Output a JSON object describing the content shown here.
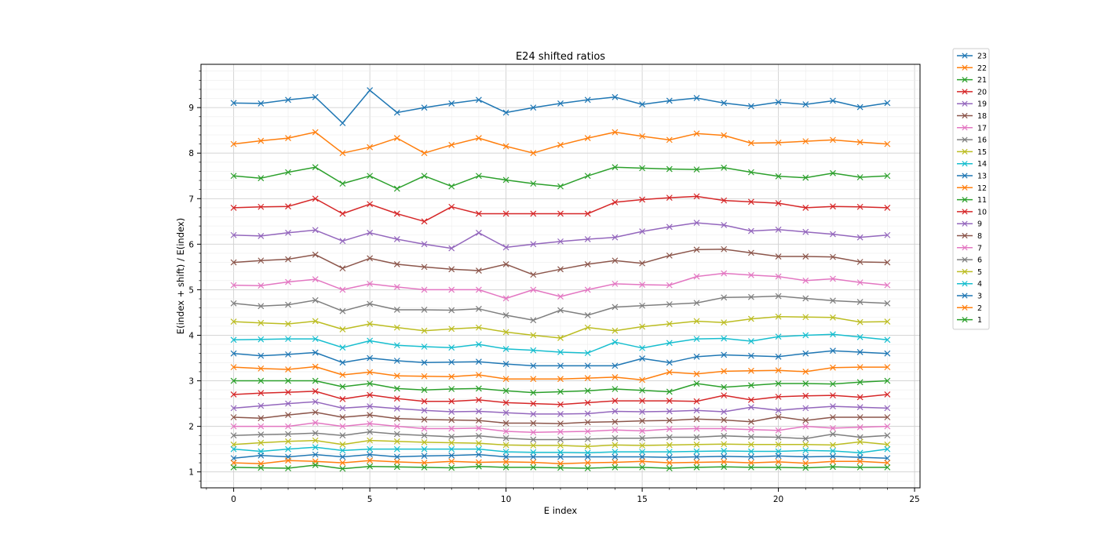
{
  "chart_data": {
    "type": "line",
    "title": "E24 shifted ratios",
    "xlabel": "E index",
    "ylabel": "E(index + shift) / E(index)",
    "xlim": [
      -1.2,
      25.2
    ],
    "ylim": [
      0.65,
      9.95
    ],
    "xticks": [
      0,
      5,
      10,
      15,
      20,
      25
    ],
    "yticks": [
      1,
      2,
      3,
      4,
      5,
      6,
      7,
      8,
      9
    ],
    "grid": "major and minor",
    "marker": "x",
    "legend_position": "outside-right",
    "x": [
      0,
      1,
      2,
      3,
      4,
      5,
      6,
      7,
      8,
      9,
      10,
      11,
      12,
      13,
      14,
      15,
      16,
      17,
      18,
      19,
      20,
      21,
      22,
      23,
      24
    ],
    "series": [
      {
        "name": "23",
        "color": "#1f77b4",
        "values": [
          9.1,
          9.09,
          9.17,
          9.23,
          8.66,
          9.38,
          8.89,
          9.0,
          9.09,
          9.17,
          8.89,
          9.0,
          9.09,
          9.17,
          9.23,
          9.07,
          9.15,
          9.21,
          9.1,
          9.03,
          9.12,
          9.07,
          9.15,
          9.01,
          9.1
        ]
      },
      {
        "name": "22",
        "color": "#ff7f0e",
        "values": [
          8.2,
          8.27,
          8.33,
          8.46,
          8.0,
          8.13,
          8.33,
          8.0,
          8.18,
          8.33,
          8.15,
          8.0,
          8.18,
          8.33,
          8.46,
          8.37,
          8.29,
          8.43,
          8.39,
          8.22,
          8.23,
          8.26,
          8.29,
          8.24,
          8.2
        ]
      },
      {
        "name": "21",
        "color": "#2ca02c",
        "values": [
          7.5,
          7.45,
          7.58,
          7.69,
          7.33,
          7.5,
          7.22,
          7.5,
          7.27,
          7.5,
          7.41,
          7.33,
          7.27,
          7.5,
          7.69,
          7.67,
          7.65,
          7.64,
          7.68,
          7.58,
          7.49,
          7.46,
          7.56,
          7.47,
          7.5
        ]
      },
      {
        "name": "20",
        "color": "#d62728",
        "values": [
          6.8,
          6.82,
          6.83,
          7.0,
          6.67,
          6.88,
          6.67,
          6.5,
          6.82,
          6.67,
          6.67,
          6.67,
          6.67,
          6.67,
          6.92,
          6.98,
          7.02,
          7.05,
          6.96,
          6.93,
          6.9,
          6.8,
          6.83,
          6.82,
          6.8
        ]
      },
      {
        "name": "19",
        "color": "#9467bd",
        "values": [
          6.2,
          6.18,
          6.25,
          6.31,
          6.07,
          6.25,
          6.11,
          6.0,
          5.91,
          6.25,
          5.93,
          6.0,
          6.06,
          6.11,
          6.15,
          6.28,
          6.38,
          6.47,
          6.42,
          6.29,
          6.32,
          6.27,
          6.22,
          6.15,
          6.2
        ]
      },
      {
        "name": "18",
        "color": "#8c564b",
        "values": [
          5.6,
          5.64,
          5.67,
          5.77,
          5.47,
          5.69,
          5.56,
          5.5,
          5.45,
          5.42,
          5.56,
          5.33,
          5.45,
          5.56,
          5.64,
          5.58,
          5.75,
          5.88,
          5.89,
          5.81,
          5.73,
          5.73,
          5.72,
          5.61,
          5.6
        ]
      },
      {
        "name": "17",
        "color": "#e377c2",
        "values": [
          5.1,
          5.09,
          5.17,
          5.23,
          5.0,
          5.13,
          5.06,
          5.0,
          5.0,
          5.0,
          4.81,
          5.0,
          4.85,
          5.0,
          5.13,
          5.11,
          5.1,
          5.29,
          5.36,
          5.32,
          5.29,
          5.2,
          5.24,
          5.16,
          5.1
        ]
      },
      {
        "name": "16",
        "color": "#7f7f7f",
        "values": [
          4.7,
          4.64,
          4.67,
          4.77,
          4.53,
          4.69,
          4.56,
          4.56,
          4.55,
          4.58,
          4.44,
          4.33,
          4.55,
          4.44,
          4.62,
          4.65,
          4.68,
          4.71,
          4.83,
          4.84,
          4.86,
          4.81,
          4.76,
          4.73,
          4.7
        ]
      },
      {
        "name": "15",
        "color": "#bcbd22",
        "values": [
          4.3,
          4.27,
          4.25,
          4.31,
          4.13,
          4.25,
          4.17,
          4.1,
          4.14,
          4.17,
          4.07,
          4.0,
          3.94,
          4.17,
          4.1,
          4.19,
          4.25,
          4.31,
          4.28,
          4.36,
          4.41,
          4.4,
          4.39,
          4.29,
          4.3
        ]
      },
      {
        "name": "14",
        "color": "#17becf",
        "values": [
          3.9,
          3.91,
          3.92,
          3.92,
          3.73,
          3.88,
          3.78,
          3.75,
          3.73,
          3.8,
          3.7,
          3.67,
          3.63,
          3.61,
          3.85,
          3.72,
          3.83,
          3.92,
          3.93,
          3.87,
          3.97,
          4.0,
          4.02,
          3.96,
          3.9
        ]
      },
      {
        "name": "13",
        "color": "#1f77b4",
        "values": [
          3.6,
          3.55,
          3.58,
          3.62,
          3.4,
          3.5,
          3.44,
          3.4,
          3.41,
          3.42,
          3.37,
          3.33,
          3.33,
          3.33,
          3.33,
          3.49,
          3.4,
          3.53,
          3.57,
          3.55,
          3.53,
          3.6,
          3.66,
          3.63,
          3.6
        ]
      },
      {
        "name": "12",
        "color": "#ff7f0e",
        "values": [
          3.3,
          3.27,
          3.25,
          3.31,
          3.13,
          3.19,
          3.11,
          3.1,
          3.09,
          3.13,
          3.04,
          3.04,
          3.04,
          3.06,
          3.08,
          3.02,
          3.19,
          3.15,
          3.21,
          3.22,
          3.23,
          3.2,
          3.29,
          3.3,
          3.3
        ]
      },
      {
        "name": "11",
        "color": "#2ca02c",
        "values": [
          3.0,
          3.0,
          3.0,
          3.0,
          2.87,
          2.94,
          2.83,
          2.8,
          2.82,
          2.83,
          2.78,
          2.74,
          2.76,
          2.78,
          2.82,
          2.79,
          2.76,
          2.94,
          2.86,
          2.9,
          2.94,
          2.94,
          2.93,
          2.97,
          3.0
        ]
      },
      {
        "name": "10",
        "color": "#d62728",
        "values": [
          2.7,
          2.73,
          2.75,
          2.77,
          2.6,
          2.69,
          2.61,
          2.55,
          2.55,
          2.58,
          2.52,
          2.5,
          2.48,
          2.52,
          2.56,
          2.56,
          2.56,
          2.55,
          2.68,
          2.58,
          2.65,
          2.67,
          2.68,
          2.64,
          2.7
        ]
      },
      {
        "name": "9",
        "color": "#9467bd",
        "values": [
          2.4,
          2.45,
          2.5,
          2.54,
          2.4,
          2.44,
          2.39,
          2.35,
          2.32,
          2.33,
          2.3,
          2.27,
          2.27,
          2.28,
          2.33,
          2.32,
          2.33,
          2.35,
          2.32,
          2.42,
          2.35,
          2.4,
          2.44,
          2.42,
          2.4
        ]
      },
      {
        "name": "8",
        "color": "#8c564b",
        "values": [
          2.2,
          2.18,
          2.25,
          2.31,
          2.2,
          2.25,
          2.17,
          2.15,
          2.14,
          2.13,
          2.07,
          2.07,
          2.06,
          2.09,
          2.1,
          2.12,
          2.13,
          2.16,
          2.14,
          2.1,
          2.21,
          2.13,
          2.2,
          2.2,
          2.2
        ]
      },
      {
        "name": "7",
        "color": "#e377c2",
        "values": [
          2.0,
          2.0,
          2.0,
          2.08,
          2.0,
          2.06,
          2.0,
          1.95,
          1.95,
          1.96,
          1.89,
          1.87,
          1.88,
          1.89,
          1.92,
          1.9,
          1.94,
          1.95,
          1.95,
          1.93,
          1.91,
          2.0,
          1.96,
          1.98,
          2.0
        ]
      },
      {
        "name": "6",
        "color": "#7f7f7f",
        "values": [
          1.8,
          1.82,
          1.83,
          1.85,
          1.8,
          1.88,
          1.83,
          1.8,
          1.77,
          1.79,
          1.74,
          1.71,
          1.71,
          1.72,
          1.74,
          1.74,
          1.76,
          1.76,
          1.79,
          1.77,
          1.76,
          1.73,
          1.83,
          1.76,
          1.8
        ]
      },
      {
        "name": "5",
        "color": "#bcbd22",
        "values": [
          1.6,
          1.64,
          1.67,
          1.69,
          1.6,
          1.69,
          1.67,
          1.65,
          1.64,
          1.63,
          1.59,
          1.58,
          1.58,
          1.56,
          1.59,
          1.58,
          1.59,
          1.6,
          1.61,
          1.6,
          1.6,
          1.6,
          1.59,
          1.66,
          1.6
        ]
      },
      {
        "name": "4",
        "color": "#17becf",
        "values": [
          1.5,
          1.45,
          1.5,
          1.54,
          1.47,
          1.5,
          1.5,
          1.5,
          1.5,
          1.5,
          1.44,
          1.43,
          1.43,
          1.42,
          1.44,
          1.44,
          1.44,
          1.45,
          1.46,
          1.45,
          1.45,
          1.47,
          1.46,
          1.42,
          1.5
        ]
      },
      {
        "name": "3",
        "color": "#1f77b4",
        "values": [
          1.3,
          1.36,
          1.33,
          1.38,
          1.33,
          1.38,
          1.33,
          1.35,
          1.36,
          1.38,
          1.33,
          1.33,
          1.33,
          1.33,
          1.33,
          1.33,
          1.32,
          1.33,
          1.34,
          1.33,
          1.35,
          1.33,
          1.34,
          1.32,
          1.3
        ]
      },
      {
        "name": "2",
        "color": "#ff7f0e",
        "values": [
          1.2,
          1.18,
          1.25,
          1.23,
          1.2,
          1.25,
          1.22,
          1.2,
          1.23,
          1.21,
          1.22,
          1.21,
          1.18,
          1.2,
          1.21,
          1.23,
          1.2,
          1.21,
          1.22,
          1.2,
          1.22,
          1.19,
          1.23,
          1.23,
          1.2
        ]
      },
      {
        "name": "1",
        "color": "#2ca02c",
        "values": [
          1.1,
          1.09,
          1.08,
          1.15,
          1.07,
          1.12,
          1.11,
          1.1,
          1.09,
          1.12,
          1.1,
          1.1,
          1.09,
          1.08,
          1.1,
          1.1,
          1.08,
          1.1,
          1.11,
          1.1,
          1.1,
          1.09,
          1.11,
          1.1,
          1.1
        ]
      }
    ]
  }
}
